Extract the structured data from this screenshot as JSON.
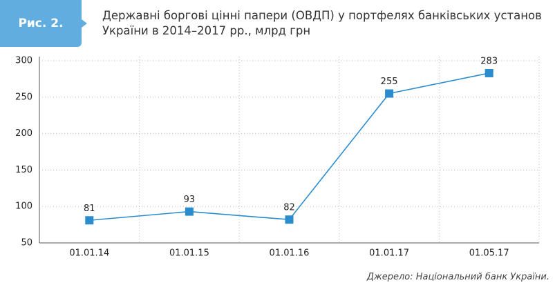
{
  "figure_label": "Рис. 2.",
  "source": "Джерело: Національний банк України.",
  "chart_data": {
    "type": "line",
    "title": "Державні боргові цінні папери (ОВДП) у портфелях банківських установ України в 2014–2017 рр., млрд грн",
    "categories": [
      "01.01.14",
      "01.01.15",
      "01.01.16",
      "01.01.17",
      "01.05.17"
    ],
    "values": [
      81,
      93,
      82,
      255,
      283
    ],
    "color": "#2a8ccc",
    "ylim": [
      50,
      300
    ],
    "yticks": [
      50,
      100,
      150,
      200,
      250,
      300
    ],
    "grid": true
  }
}
